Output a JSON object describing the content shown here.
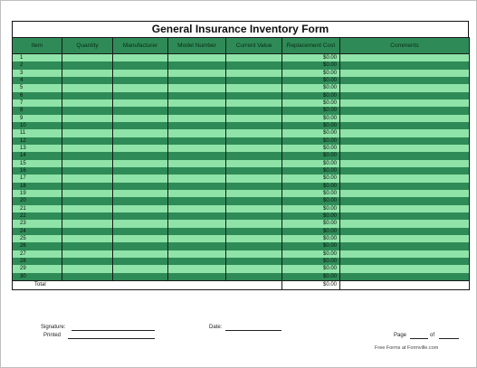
{
  "form": {
    "title": "General Insurance Inventory Form",
    "columns": [
      "Item",
      "Quantity",
      "Manufacturer",
      "Model Number",
      "Current Value",
      "Replacement Cost",
      "Comments"
    ],
    "rows": [
      {
        "num": "1",
        "cost": "$0.00"
      },
      {
        "num": "2",
        "cost": "$0.00"
      },
      {
        "num": "3",
        "cost": "$0.00"
      },
      {
        "num": "4",
        "cost": "$0.00"
      },
      {
        "num": "5",
        "cost": "$0.00"
      },
      {
        "num": "6",
        "cost": "$0.00"
      },
      {
        "num": "7",
        "cost": "$0.00"
      },
      {
        "num": "8",
        "cost": "$0.00"
      },
      {
        "num": "9",
        "cost": "$0.00"
      },
      {
        "num": "10",
        "cost": "$0.00"
      },
      {
        "num": "11",
        "cost": "$0.00"
      },
      {
        "num": "12",
        "cost": "$0.00"
      },
      {
        "num": "13",
        "cost": "$0.00"
      },
      {
        "num": "14",
        "cost": "$0.00"
      },
      {
        "num": "15",
        "cost": "$0.00"
      },
      {
        "num": "16",
        "cost": "$0.00"
      },
      {
        "num": "17",
        "cost": "$0.00"
      },
      {
        "num": "18",
        "cost": "$0.00"
      },
      {
        "num": "19",
        "cost": "$0.00"
      },
      {
        "num": "20",
        "cost": "$0.00"
      },
      {
        "num": "21",
        "cost": "$0.00"
      },
      {
        "num": "22",
        "cost": "$0.00"
      },
      {
        "num": "23",
        "cost": "$0.00"
      },
      {
        "num": "24",
        "cost": "$0.00"
      },
      {
        "num": "25",
        "cost": "$0.00"
      },
      {
        "num": "26",
        "cost": "$0.00"
      },
      {
        "num": "27",
        "cost": "$0.00"
      },
      {
        "num": "28",
        "cost": "$0.00"
      },
      {
        "num": "29",
        "cost": "$0.00"
      },
      {
        "num": "30",
        "cost": "$0.00"
      }
    ],
    "total_label": "Total",
    "total_value": "$0.00"
  },
  "footer": {
    "signature_label": "Signature:",
    "date_label": "Date:",
    "printed_label": "Printed",
    "page_label": "Page",
    "of_label": "of",
    "credit": "Free Forms at Formville.com"
  },
  "colors": {
    "dark_row": "#2e8b57",
    "light_row": "#8fe3a8"
  }
}
